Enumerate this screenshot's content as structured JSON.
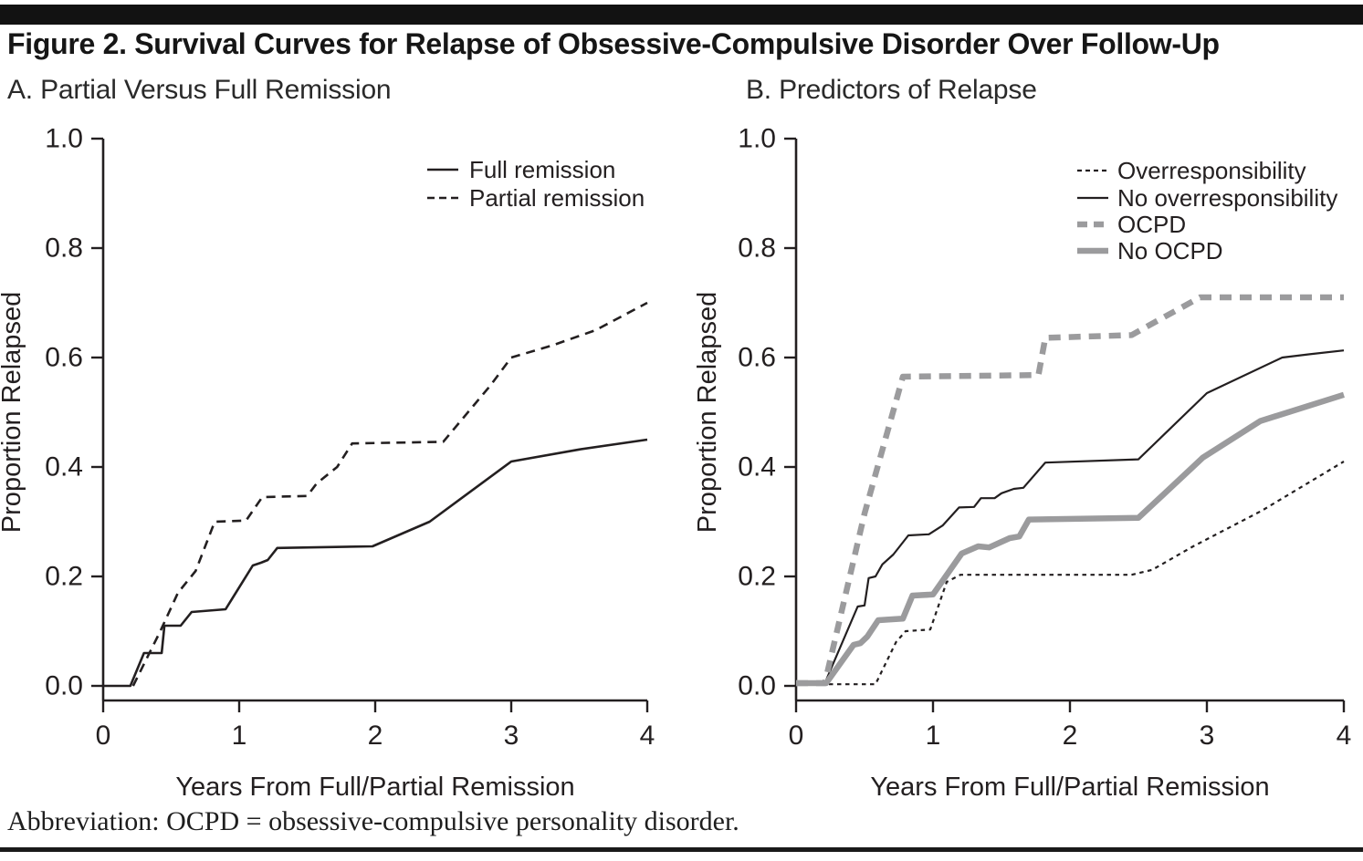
{
  "page": {
    "title": "Figure 2. Survival Curves for Relapse of Obsessive-Compulsive Disorder Over Follow-Up",
    "footnote": "Abbreviation: OCPD = obsessive-compulsive personality disorder."
  },
  "colors": {
    "ink": "#231f20",
    "gray": "#9b9b9d"
  },
  "chart_data": [
    {
      "type": "line",
      "panel_label": "A. Partial Versus Full Remission",
      "xlabel": "Years From Full/Partial Remission",
      "ylabel": "Proportion Relapsed",
      "xlim": [
        0,
        4
      ],
      "ylim": [
        0,
        1.0
      ],
      "xticks": [
        0,
        1,
        2,
        3,
        4
      ],
      "ytick_labels": [
        "0.0",
        "0.2",
        "0.4",
        "0.6",
        "0.8",
        "1.0"
      ],
      "grid": false,
      "legend_position": "upper right inside plot",
      "series": [
        {
          "name": "Full remission",
          "color": "#231f20",
          "line": "solid",
          "width": 2.6,
          "points": [
            [
              0,
              0
            ],
            [
              0.2,
              0
            ],
            [
              0.3,
              0.06
            ],
            [
              0.43,
              0.06
            ],
            [
              0.45,
              0.11
            ],
            [
              0.57,
              0.11
            ],
            [
              0.65,
              0.135
            ],
            [
              0.9,
              0.14
            ],
            [
              1.1,
              0.22
            ],
            [
              1.16,
              0.225
            ],
            [
              1.21,
              0.23
            ],
            [
              1.28,
              0.252
            ],
            [
              1.98,
              0.255
            ],
            [
              2.4,
              0.3
            ],
            [
              3.0,
              0.41
            ],
            [
              3.5,
              0.432
            ],
            [
              4.0,
              0.45
            ]
          ]
        },
        {
          "name": "Partial remission",
          "color": "#231f20",
          "line": "dashed",
          "width": 2.6,
          "points": [
            [
              0.22,
              0
            ],
            [
              0.42,
              0.1
            ],
            [
              0.55,
              0.17
            ],
            [
              0.68,
              0.21
            ],
            [
              0.82,
              0.3
            ],
            [
              1.05,
              0.302
            ],
            [
              1.17,
              0.345
            ],
            [
              1.5,
              0.347
            ],
            [
              1.57,
              0.37
            ],
            [
              1.72,
              0.4
            ],
            [
              1.83,
              0.443
            ],
            [
              2.5,
              0.446
            ],
            [
              2.85,
              0.55
            ],
            [
              3.0,
              0.6
            ],
            [
              3.3,
              0.622
            ],
            [
              3.62,
              0.65
            ],
            [
              4.0,
              0.7
            ]
          ]
        }
      ]
    },
    {
      "type": "line",
      "panel_label": "B. Predictors of Relapse",
      "xlabel": "Years From Full/Partial Remission",
      "ylabel": "Proportion Relapsed",
      "xlim": [
        0,
        4
      ],
      "ylim": [
        0,
        1.0
      ],
      "xticks": [
        0,
        1,
        2,
        3,
        4
      ],
      "ytick_labels": [
        "0.0",
        "0.2",
        "0.4",
        "0.6",
        "0.8",
        "1.0"
      ],
      "grid": false,
      "legend_position": "upper right inside plot",
      "series": [
        {
          "name": "Overresponsibility",
          "color": "#231f20",
          "line": "dotted",
          "width": 2.2,
          "points": [
            [
              0,
              0.003
            ],
            [
              0.58,
              0.003
            ],
            [
              0.73,
              0.08
            ],
            [
              0.8,
              0.1
            ],
            [
              0.98,
              0.103
            ],
            [
              1.1,
              0.19
            ],
            [
              1.2,
              0.203
            ],
            [
              2.45,
              0.203
            ],
            [
              2.6,
              0.212
            ],
            [
              2.9,
              0.255
            ],
            [
              3.4,
              0.32
            ],
            [
              4.0,
              0.41
            ]
          ]
        },
        {
          "name": "No overresponsibility",
          "color": "#231f20",
          "line": "solid",
          "width": 2.2,
          "points": [
            [
              0,
              0.005
            ],
            [
              0.21,
              0.005
            ],
            [
              0.45,
              0.145
            ],
            [
              0.5,
              0.147
            ],
            [
              0.53,
              0.197
            ],
            [
              0.58,
              0.2
            ],
            [
              0.63,
              0.222
            ],
            [
              0.71,
              0.24
            ],
            [
              0.82,
              0.275
            ],
            [
              0.97,
              0.277
            ],
            [
              1.07,
              0.293
            ],
            [
              1.19,
              0.326
            ],
            [
              1.3,
              0.327
            ],
            [
              1.35,
              0.343
            ],
            [
              1.45,
              0.343
            ],
            [
              1.5,
              0.352
            ],
            [
              1.59,
              0.36
            ],
            [
              1.66,
              0.362
            ],
            [
              1.82,
              0.408
            ],
            [
              2.5,
              0.414
            ],
            [
              3.0,
              0.535
            ],
            [
              3.55,
              0.6
            ],
            [
              3.75,
              0.606
            ],
            [
              4.0,
              0.613
            ]
          ]
        },
        {
          "name": "OCPD",
          "color": "#9b9b9d",
          "line": "dashed",
          "width": 6.5,
          "points": [
            [
              0,
              0.005
            ],
            [
              0.21,
              0.005
            ],
            [
              0.5,
              0.315
            ],
            [
              0.78,
              0.565
            ],
            [
              1.77,
              0.568
            ],
            [
              1.82,
              0.636
            ],
            [
              2.45,
              0.641
            ],
            [
              2.55,
              0.655
            ],
            [
              2.95,
              0.71
            ],
            [
              4.0,
              0.71
            ]
          ]
        },
        {
          "name": "No OCPD",
          "color": "#9b9b9d",
          "line": "solid",
          "width": 6.5,
          "points": [
            [
              0,
              0.005
            ],
            [
              0.22,
              0.005
            ],
            [
              0.42,
              0.075
            ],
            [
              0.47,
              0.078
            ],
            [
              0.52,
              0.09
            ],
            [
              0.6,
              0.12
            ],
            [
              0.78,
              0.123
            ],
            [
              0.85,
              0.165
            ],
            [
              1.0,
              0.167
            ],
            [
              1.21,
              0.242
            ],
            [
              1.33,
              0.255
            ],
            [
              1.41,
              0.253
            ],
            [
              1.56,
              0.27
            ],
            [
              1.63,
              0.273
            ],
            [
              1.7,
              0.304
            ],
            [
              2.5,
              0.307
            ],
            [
              2.97,
              0.417
            ],
            [
              3.39,
              0.484
            ],
            [
              4.0,
              0.532
            ]
          ]
        }
      ]
    }
  ]
}
